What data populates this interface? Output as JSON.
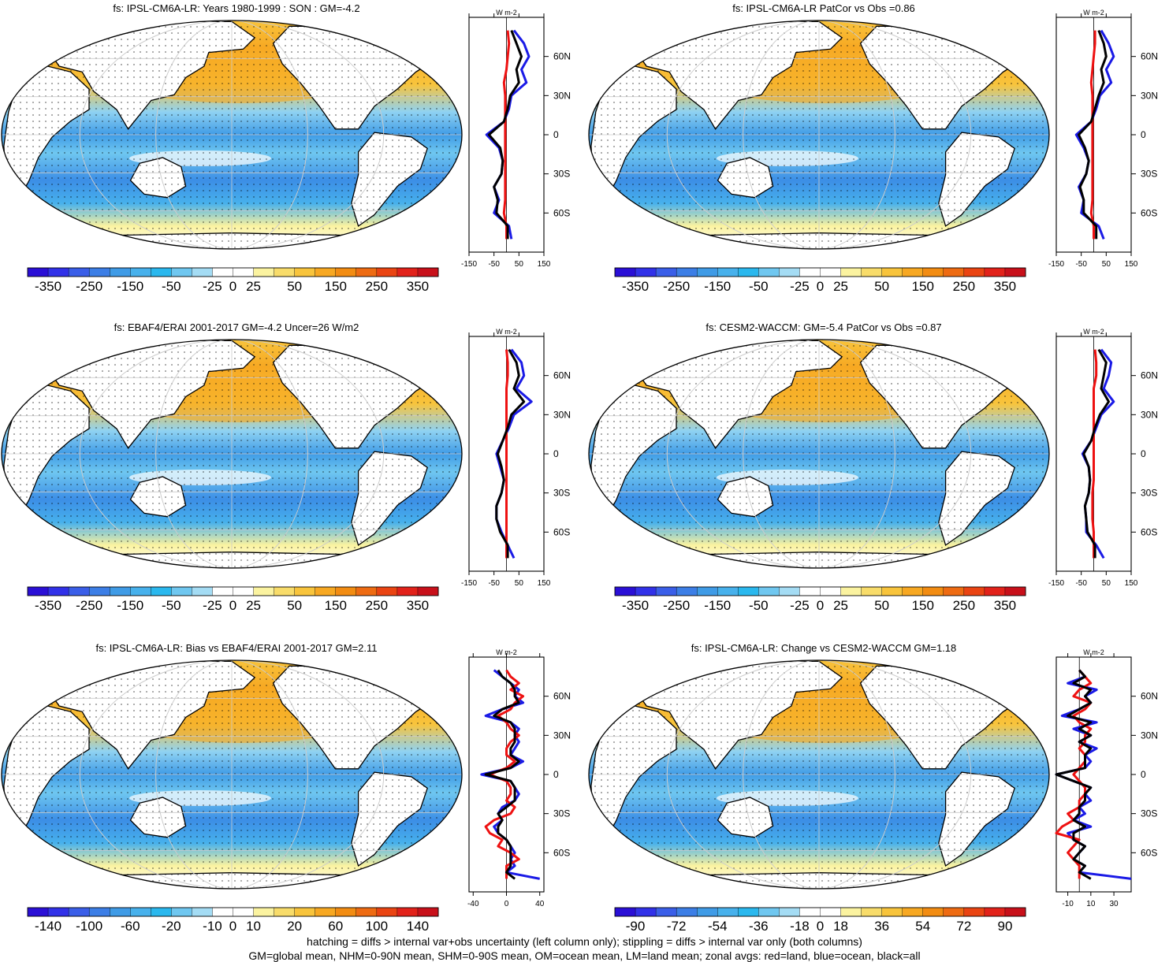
{
  "footer": {
    "line1": "hatching = diffs > internal var+obs uncertainty (left column only); stippling = diffs > internal var only (both columns)",
    "line2": "GM=global mean, NHM=0-90N mean, SHM=0-90S mean, OM=ocean mean, LM=land mean; zonal avgs: red=land, blue=ocean, black=all"
  },
  "palette": {
    "colors": [
      "#2a0fd6",
      "#3131e8",
      "#3a5ee8",
      "#3c7ee6",
      "#3f9be6",
      "#47b1ec",
      "#2ab8ee",
      "#6fc7f0",
      "#a4dcf4",
      "#ffffff",
      "#ffffff",
      "#fbf3a0",
      "#f8dc6a",
      "#f8c43c",
      "#f7a822",
      "#f28c12",
      "#ee6b12",
      "#ea4412",
      "#e2221a",
      "#c8101a"
    ],
    "land": "#ffffff",
    "coast": "#000000",
    "lines": {
      "land": "#ee1111",
      "ocean": "#1a1ae6",
      "all": "#000000"
    }
  },
  "chart_data": [
    {
      "type": "map",
      "title": "fs: IPSL-CM6A-LR: Years 1980-1999 : SON : GM=-4.2",
      "colorbar_labels": [
        "-350",
        "-250",
        "-150",
        "-50",
        "-25",
        "0",
        "25",
        "50",
        "150",
        "250",
        "350"
      ],
      "zonal": {
        "type": "line",
        "units": "W m-2",
        "xticks": [
          "-150",
          "-50",
          "50",
          "150"
        ],
        "xlim": [
          -150,
          150
        ],
        "yticks": [
          "60N",
          "30N",
          "0",
          "30S",
          "60S"
        ],
        "lat": [
          80,
          70,
          60,
          50,
          40,
          30,
          20,
          10,
          0,
          -10,
          -20,
          -30,
          -40,
          -50,
          -60,
          -70,
          -80
        ],
        "series": [
          {
            "name": "ocean",
            "values": [
              30,
              70,
              90,
              60,
              80,
              20,
              10,
              -10,
              -80,
              -30,
              -15,
              -20,
              -50,
              -30,
              -50,
              10,
              20
            ]
          },
          {
            "name": "all",
            "values": [
              20,
              40,
              60,
              40,
              50,
              15,
              5,
              -10,
              -70,
              -25,
              -15,
              -20,
              -50,
              -35,
              -40,
              5,
              5
            ]
          },
          {
            "name": "land",
            "values": [
              5,
              10,
              5,
              0,
              -10,
              -5,
              -5,
              -5,
              -5,
              -5,
              -5,
              -5,
              -5,
              -5,
              -10,
              0,
              0
            ]
          }
        ]
      }
    },
    {
      "type": "map",
      "title": "fs: IPSL-CM6A-LR PatCor vs Obs =0.86",
      "colorbar_labels": [
        "-350",
        "-250",
        "-150",
        "-50",
        "-25",
        "0",
        "25",
        "50",
        "150",
        "250",
        "350"
      ],
      "zonal": {
        "type": "line",
        "units": "W m-2",
        "xticks": [
          "-150",
          "-50",
          "50",
          "150"
        ],
        "xlim": [
          -150,
          150
        ],
        "yticks": [
          "60N",
          "30N",
          "0",
          "30S",
          "60S"
        ],
        "lat": [
          80,
          70,
          60,
          50,
          40,
          30,
          20,
          10,
          0,
          -10,
          -20,
          -30,
          -40,
          -50,
          -60,
          -70,
          -80
        ],
        "series": [
          {
            "name": "ocean",
            "values": [
              30,
              60,
              80,
              50,
              70,
              25,
              10,
              -10,
              -70,
              -40,
              -20,
              -30,
              -60,
              -40,
              -50,
              20,
              40
            ]
          },
          {
            "name": "all",
            "values": [
              20,
              40,
              50,
              30,
              40,
              20,
              5,
              -10,
              -60,
              -35,
              -20,
              -30,
              -55,
              -40,
              -40,
              10,
              10
            ]
          },
          {
            "name": "land",
            "values": [
              5,
              5,
              0,
              -5,
              -10,
              -5,
              -5,
              -5,
              -5,
              -5,
              -5,
              -5,
              -5,
              -5,
              -10,
              0,
              0
            ]
          }
        ]
      }
    },
    {
      "type": "map",
      "title": "fs: EBAF4/ERAI 2001-2017 GM=-4.2 Uncer=26 W/m2",
      "colorbar_labels": [
        "-350",
        "-250",
        "-150",
        "-50",
        "-25",
        "0",
        "25",
        "50",
        "150",
        "250",
        "350"
      ],
      "zonal": {
        "type": "line",
        "units": "W m-2",
        "xticks": [
          "-150",
          "-50",
          "50",
          "150"
        ],
        "xlim": [
          -150,
          150
        ],
        "yticks": [
          "60N",
          "30N",
          "0",
          "30S",
          "60S"
        ],
        "lat": [
          80,
          70,
          60,
          50,
          40,
          30,
          20,
          10,
          0,
          -10,
          -20,
          -30,
          -40,
          -50,
          -60,
          -70,
          -80
        ],
        "series": [
          {
            "name": "ocean",
            "values": [
              20,
              60,
              70,
              40,
              100,
              30,
              10,
              -15,
              -40,
              -25,
              -10,
              -20,
              -40,
              -40,
              -20,
              5,
              30
            ]
          },
          {
            "name": "all",
            "values": [
              10,
              40,
              50,
              30,
              70,
              20,
              5,
              -15,
              -35,
              -20,
              -10,
              -20,
              -40,
              -40,
              -25,
              5,
              5
            ]
          },
          {
            "name": "land",
            "values": [
              0,
              5,
              5,
              0,
              0,
              0,
              0,
              0,
              0,
              0,
              0,
              0,
              0,
              0,
              0,
              0,
              0
            ]
          }
        ]
      }
    },
    {
      "type": "map",
      "title": "fs: CESM2-WACCM: GM=-5.4 PatCor vs Obs =0.87",
      "colorbar_labels": [
        "-350",
        "-250",
        "-150",
        "-50",
        "-25",
        "0",
        "25",
        "50",
        "150",
        "250",
        "350"
      ],
      "zonal": {
        "type": "line",
        "units": "W m-2",
        "xticks": [
          "-150",
          "-50",
          "50",
          "150"
        ],
        "xlim": [
          -150,
          150
        ],
        "yticks": [
          "60N",
          "30N",
          "0",
          "30S",
          "60S"
        ],
        "lat": [
          80,
          70,
          60,
          50,
          40,
          30,
          20,
          10,
          0,
          -10,
          -20,
          -30,
          -40,
          -50,
          -60,
          -70,
          -80
        ],
        "series": [
          {
            "name": "ocean",
            "values": [
              30,
              70,
              60,
              40,
              80,
              30,
              10,
              -10,
              -45,
              -20,
              -15,
              -20,
              -35,
              -30,
              -30,
              10,
              40
            ]
          },
          {
            "name": "all",
            "values": [
              20,
              50,
              40,
              30,
              60,
              25,
              5,
              -10,
              -40,
              -20,
              -15,
              -20,
              -35,
              -30,
              -25,
              5,
              5
            ]
          },
          {
            "name": "land",
            "values": [
              5,
              10,
              10,
              0,
              0,
              0,
              0,
              0,
              0,
              0,
              0,
              -5,
              -5,
              -5,
              0,
              0,
              0
            ]
          }
        ]
      }
    },
    {
      "type": "map",
      "title": "fs: IPSL-CM6A-LR: Bias vs EBAF4/ERAI 2001-2017  GM=2.11",
      "colorbar_labels": [
        "-140",
        "-100",
        "-60",
        "-20",
        "-10",
        "0",
        "10",
        "20",
        "60",
        "100",
        "140"
      ],
      "zonal": {
        "type": "line",
        "units": "W m-2",
        "xticks": [
          "-40",
          "0",
          "40"
        ],
        "xlim": [
          -45,
          45
        ],
        "yticks": [
          "60N",
          "30N",
          "0",
          "30S",
          "60S"
        ],
        "lat": [
          80,
          75,
          70,
          65,
          60,
          55,
          50,
          45,
          40,
          35,
          30,
          25,
          20,
          15,
          10,
          5,
          0,
          -5,
          -10,
          -15,
          -20,
          -25,
          -30,
          -35,
          -40,
          -45,
          -50,
          -55,
          -60,
          -65,
          -70,
          -75,
          -80
        ],
        "series": [
          {
            "name": "ocean",
            "values": [
              -15,
              -5,
              5,
              15,
              10,
              20,
              -5,
              -25,
              5,
              15,
              10,
              15,
              10,
              5,
              20,
              5,
              -30,
              5,
              10,
              15,
              10,
              -5,
              -10,
              -5,
              -15,
              -10,
              0,
              5,
              10,
              5,
              10,
              0,
              40
            ]
          },
          {
            "name": "all",
            "values": [
              -10,
              -5,
              5,
              10,
              10,
              15,
              -5,
              -15,
              5,
              10,
              10,
              10,
              5,
              5,
              15,
              5,
              -25,
              5,
              10,
              10,
              10,
              0,
              -10,
              -5,
              -10,
              -10,
              0,
              5,
              5,
              5,
              5,
              0,
              10
            ]
          },
          {
            "name": "land",
            "values": [
              0,
              5,
              15,
              5,
              20,
              10,
              5,
              -10,
              0,
              5,
              15,
              5,
              0,
              0,
              10,
              0,
              -20,
              0,
              5,
              5,
              0,
              10,
              5,
              -15,
              -25,
              -20,
              -5,
              -10,
              5,
              15,
              0,
              0,
              0
            ]
          }
        ]
      }
    },
    {
      "type": "map",
      "title": "fs: IPSL-CM6A-LR: Change vs CESM2-WACCM GM=1.18",
      "colorbar_labels": [
        "-90",
        "-72",
        "-54",
        "-36",
        "-18",
        "0",
        "18",
        "36",
        "54",
        "72",
        "90"
      ],
      "zonal": {
        "type": "line",
        "units": "W m-2",
        "xticks": [
          "-10",
          "10",
          "30"
        ],
        "xlim": [
          -20,
          45
        ],
        "yticks": [
          "60N",
          "30N",
          "0",
          "30S",
          "60S"
        ],
        "lat": [
          80,
          75,
          70,
          65,
          60,
          55,
          50,
          45,
          40,
          35,
          30,
          25,
          20,
          15,
          10,
          5,
          0,
          -5,
          -10,
          -15,
          -20,
          -25,
          -30,
          -35,
          -40,
          -45,
          -50,
          -55,
          -60,
          -65,
          -70,
          -75,
          -80
        ],
        "series": [
          {
            "name": "ocean",
            "values": [
              0,
              5,
              -10,
              15,
              5,
              10,
              0,
              -15,
              15,
              -5,
              10,
              0,
              15,
              5,
              10,
              5,
              -25,
              -5,
              10,
              5,
              10,
              0,
              5,
              -5,
              10,
              -10,
              -5,
              5,
              0,
              -5,
              5,
              0,
              45
            ]
          },
          {
            "name": "all",
            "values": [
              0,
              5,
              -5,
              10,
              5,
              10,
              0,
              -10,
              10,
              0,
              10,
              0,
              10,
              5,
              5,
              5,
              -20,
              -5,
              10,
              5,
              5,
              0,
              0,
              -5,
              5,
              -5,
              -5,
              5,
              0,
              -5,
              5,
              0,
              10
            ]
          },
          {
            "name": "land",
            "values": [
              0,
              5,
              10,
              0,
              -5,
              10,
              5,
              -5,
              0,
              10,
              5,
              5,
              0,
              5,
              5,
              0,
              -5,
              0,
              5,
              5,
              0,
              0,
              -10,
              -5,
              -15,
              -20,
              0,
              -5,
              -10,
              -5,
              0,
              0,
              0
            ]
          }
        ]
      }
    }
  ]
}
